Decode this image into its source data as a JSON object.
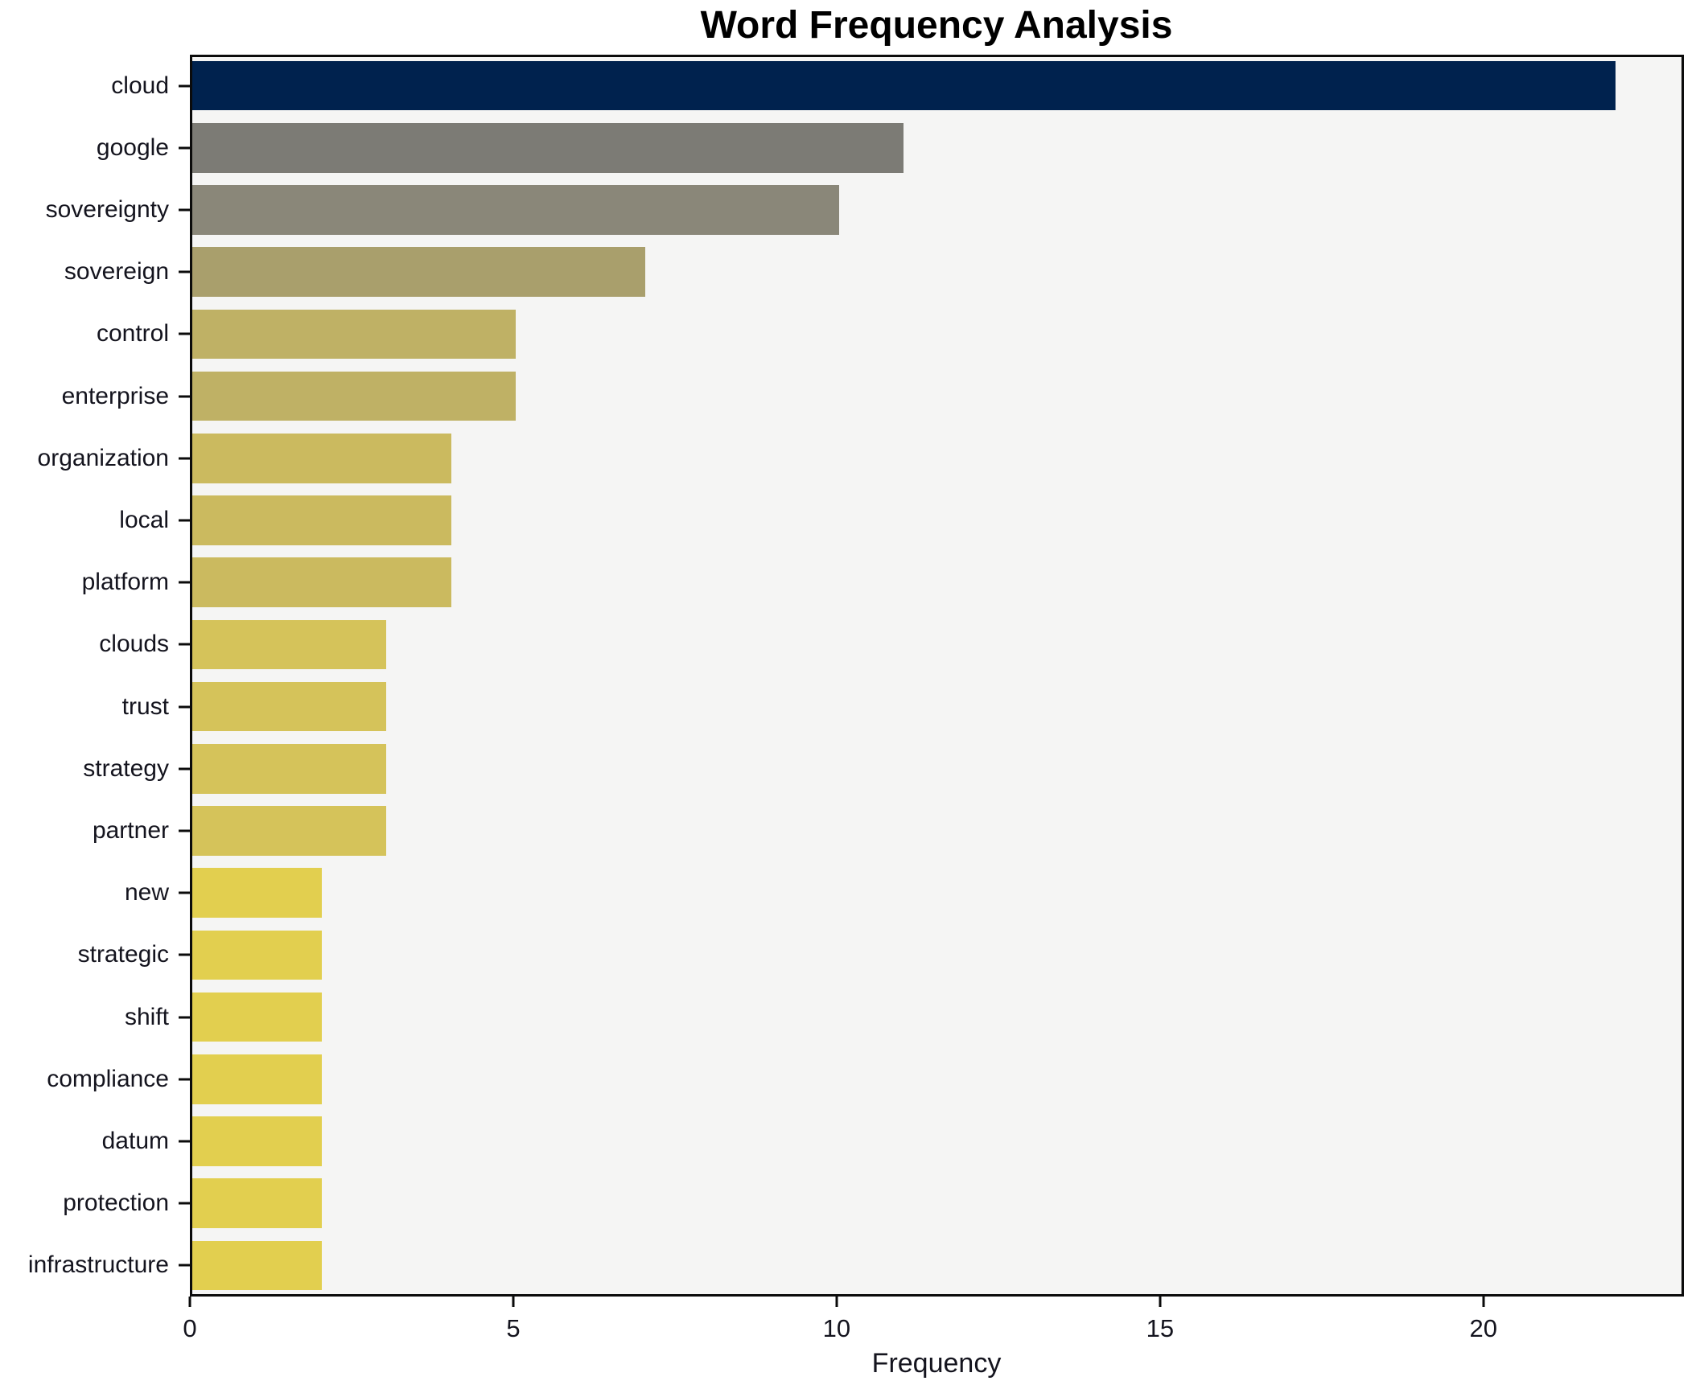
{
  "figure": {
    "title": "Word Frequency Analysis",
    "xlabel": "Frequency"
  },
  "chart_data": {
    "type": "bar",
    "orientation": "horizontal",
    "title": "Word Frequency Analysis",
    "xlabel": "Frequency",
    "ylabel": "",
    "categories": [
      "cloud",
      "google",
      "sovereignty",
      "sovereign",
      "control",
      "enterprise",
      "organization",
      "local",
      "platform",
      "clouds",
      "trust",
      "strategy",
      "partner",
      "new",
      "strategic",
      "shift",
      "compliance",
      "datum",
      "protection",
      "infrastructure"
    ],
    "values": [
      22,
      11,
      10,
      7,
      5,
      5,
      4,
      4,
      4,
      3,
      3,
      3,
      3,
      2,
      2,
      2,
      2,
      2,
      2,
      2
    ],
    "bar_colors": [
      "#00224e",
      "#7c7b75",
      "#8a8779",
      "#a99f6c",
      "#bfb165",
      "#bfb165",
      "#cbba5f",
      "#cbba5f",
      "#cbba5f",
      "#d5c35a",
      "#d5c35a",
      "#d5c35a",
      "#d5c35a",
      "#e2cf4f",
      "#e2cf4f",
      "#e2cf4f",
      "#e2cf4f",
      "#e2cf4f",
      "#e2cf4f",
      "#e2cf4f"
    ],
    "xticks": [
      0,
      5,
      10,
      15,
      20
    ],
    "xlim": [
      0,
      23.1
    ],
    "grid": false,
    "legend_position": "none",
    "plot_background": "#f5f5f4",
    "figure_background": "#ffffff",
    "spine_color": "#0b0b0b",
    "text_color": "#14141e"
  }
}
